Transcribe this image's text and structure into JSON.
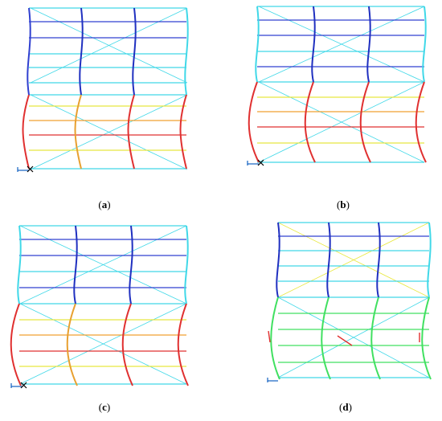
{
  "captions": [
    {
      "open": "(",
      "letter": "a",
      "close": ")"
    },
    {
      "open": "(",
      "letter": "b",
      "close": ")"
    },
    {
      "open": "(",
      "letter": "c",
      "close": ")"
    },
    {
      "open": "(",
      "letter": "d",
      "close": ")"
    }
  ],
  "colors": {
    "frame_default": "#40d8e8",
    "column_blue": "#2030c0",
    "beam_blue": "#3040d0",
    "beam_cyan": "#40d8e8",
    "beam_green": "#40e060",
    "beam_yellow": "#e8e840",
    "beam_orange": "#f0a030",
    "beam_red": "#e03030",
    "axis_blue": "#1060c0"
  }
}
